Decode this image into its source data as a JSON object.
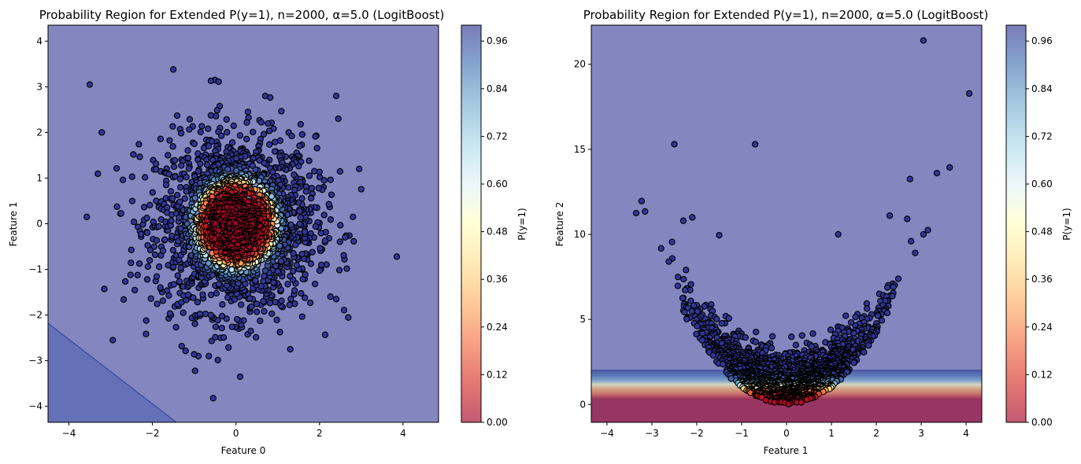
{
  "chart_data": [
    {
      "type": "scatter",
      "title": "Probability Region for Extended P(y=1), n=2000, α=5.0 (LogitBoost)",
      "xlabel": "Feature 0",
      "ylabel": "Feature 1",
      "xlim": [
        -4.5,
        4.85
      ],
      "ylim": [
        -4.35,
        4.35
      ],
      "xticks": [
        "−4",
        "−2",
        "0",
        "2",
        "4"
      ],
      "yticks": [
        "−4",
        "−3",
        "−2",
        "−1",
        "0",
        "1",
        "2",
        "3",
        "4"
      ],
      "xtick_values": [
        -4,
        -2,
        0,
        2,
        4
      ],
      "ytick_values": [
        -4,
        -3,
        -2,
        -1,
        0,
        1,
        2,
        3,
        4
      ],
      "background": "Probability surface, near 1 (blue) across plot, slightly lighter wedge in lower-left corner",
      "point_distribution": "About 2000 points, standard normal cloud centered at (0,0); points within radius ~0.9 are red (P≈0), ring near radius 1 is yellow/light, outer points blue (P≈1)",
      "outlier_points": [
        [
          -3.5,
          3.05
        ],
        [
          -1.5,
          3.38
        ],
        [
          -0.5,
          3.15
        ],
        [
          -0.6,
          3.13
        ],
        [
          0.7,
          2.8
        ],
        [
          2.4,
          2.8
        ],
        [
          2.45,
          2.3
        ],
        [
          2.95,
          1.2
        ],
        [
          2.8,
          0.15
        ],
        [
          3.85,
          -0.72
        ],
        [
          -2.95,
          -2.55
        ],
        [
          -2.15,
          -2.12
        ],
        [
          0.1,
          -3.35
        ],
        [
          -0.9,
          -2.9
        ],
        [
          -0.65,
          -2.9
        ],
        [
          1.3,
          -2.75
        ],
        [
          2.4,
          -1.65
        ]
      ],
      "colorbar": {
        "label": "P(y=1)",
        "ticks": [
          "0.00",
          "0.12",
          "0.24",
          "0.36",
          "0.48",
          "0.60",
          "0.72",
          "0.84",
          "0.96"
        ],
        "tick_values": [
          0.0,
          0.12,
          0.24,
          0.36,
          0.48,
          0.6,
          0.72,
          0.84,
          0.96
        ],
        "range": [
          0,
          1
        ]
      }
    },
    {
      "type": "scatter",
      "title": "Probability Region for Extended P(y=1), n=2000, α=5.0 (LogitBoost)",
      "xlabel": "Feature 1",
      "ylabel": "Feature 2",
      "xlim": [
        -4.35,
        4.35
      ],
      "ylim": [
        -1.05,
        22.3
      ],
      "xticks": [
        "−4",
        "−3",
        "−2",
        "−1",
        "0",
        "1",
        "2",
        "3",
        "4"
      ],
      "yticks": [
        "0",
        "5",
        "10",
        "15",
        "20"
      ],
      "xtick_values": [
        -4,
        -3,
        -2,
        -1,
        0,
        1,
        2,
        3,
        4
      ],
      "ytick_values": [
        0,
        5,
        10,
        15,
        20
      ],
      "background": "Horizontal bands: red below ~0.4, transition red→yellow→blue between ~0.4 and ~1.9, blue above",
      "point_distribution": "Points fill the region y ≥ x² (parabola), red near the origin, blue above y≈1.5",
      "outlier_points": [
        [
          3.05,
          21.4
        ],
        [
          -2.5,
          15.3
        ],
        [
          -0.7,
          15.3
        ],
        [
          3.35,
          13.6
        ],
        [
          2.75,
          13.25
        ],
        [
          -3.35,
          11.25
        ],
        [
          2.3,
          11.1
        ],
        [
          -2.1,
          11.0
        ],
        [
          -2.3,
          10.8
        ],
        [
          3.15,
          10.25
        ],
        [
          3.05,
          10.0
        ],
        [
          1.15,
          10.0
        ],
        [
          -1.5,
          9.95
        ],
        [
          -2.55,
          9.55
        ]
      ],
      "colorbar": {
        "label": "P(y=1)",
        "ticks": [
          "0.00",
          "0.12",
          "0.24",
          "0.36",
          "0.48",
          "0.60",
          "0.72",
          "0.84",
          "0.96"
        ],
        "tick_values": [
          0.0,
          0.12,
          0.24,
          0.36,
          0.48,
          0.6,
          0.72,
          0.84,
          0.96
        ],
        "range": [
          0,
          1
        ]
      }
    }
  ]
}
